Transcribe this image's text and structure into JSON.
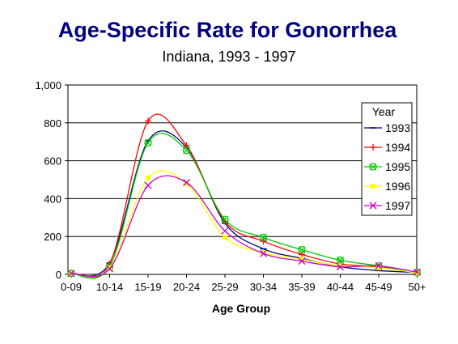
{
  "chart_data": {
    "type": "line",
    "title": "Age-Specific Rate for Gonorrhea",
    "subtitle": "Indiana, 1993 - 1997",
    "xlabel": "Age Group",
    "ylabel": "",
    "categories": [
      "0-09",
      "10-14",
      "15-19",
      "20-24",
      "25-29",
      "30-34",
      "35-39",
      "40-44",
      "45-49",
      "50+"
    ],
    "y_ticks": [
      "0",
      "200",
      "400",
      "600",
      "800",
      "1,000"
    ],
    "ylim": [
      0,
      1000
    ],
    "grid": true,
    "legend": {
      "title": "Year",
      "position": "right"
    },
    "series": [
      {
        "name": "1993",
        "color": "#000080",
        "marker": "dash",
        "values": [
          5,
          60,
          705,
          670,
          270,
          135,
          85,
          40,
          20,
          10
        ]
      },
      {
        "name": "1994",
        "color": "#ff0000",
        "marker": "plus",
        "values": [
          5,
          55,
          810,
          680,
          280,
          175,
          105,
          55,
          40,
          12
        ]
      },
      {
        "name": "1995",
        "color": "#00cc00",
        "marker": "circle-cross",
        "values": [
          5,
          40,
          695,
          655,
          290,
          195,
          130,
          75,
          45,
          10
        ]
      },
      {
        "name": "1996",
        "color": "#ffff00",
        "marker": "square",
        "values": [
          5,
          35,
          510,
          480,
          195,
          115,
          80,
          45,
          35,
          8
        ]
      },
      {
        "name": "1997",
        "color": "#cc00cc",
        "marker": "x",
        "values": [
          5,
          30,
          470,
          485,
          230,
          110,
          70,
          40,
          45,
          12
        ]
      }
    ]
  }
}
